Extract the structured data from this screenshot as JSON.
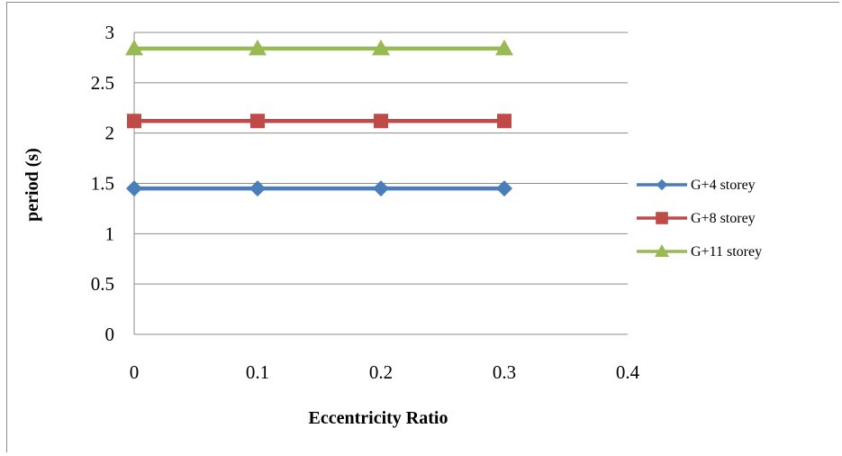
{
  "chart_data": {
    "type": "line",
    "title": "",
    "xlabel": "Eccentricity Ratio",
    "ylabel": "period (s)",
    "xlim": [
      0,
      0.4
    ],
    "ylim": [
      0,
      3
    ],
    "xticks": [
      0,
      0.1,
      0.2,
      0.3,
      0.4
    ],
    "yticks": [
      0,
      0.5,
      1,
      1.5,
      2,
      2.5,
      3
    ],
    "grid": "horizontal",
    "legend_position": "right",
    "x": [
      0,
      0.1,
      0.2,
      0.3
    ],
    "series": [
      {
        "name": "G+4 storey",
        "values": [
          1.45,
          1.45,
          1.45,
          1.45
        ],
        "color": "#4a7ebb",
        "marker": "diamond"
      },
      {
        "name": "G+8 storey",
        "values": [
          2.12,
          2.12,
          2.12,
          2.12
        ],
        "color": "#be4b48",
        "marker": "square"
      },
      {
        "name": "G+11 storey",
        "values": [
          2.84,
          2.84,
          2.84,
          2.84
        ],
        "color": "#98b954",
        "marker": "triangle"
      }
    ]
  }
}
